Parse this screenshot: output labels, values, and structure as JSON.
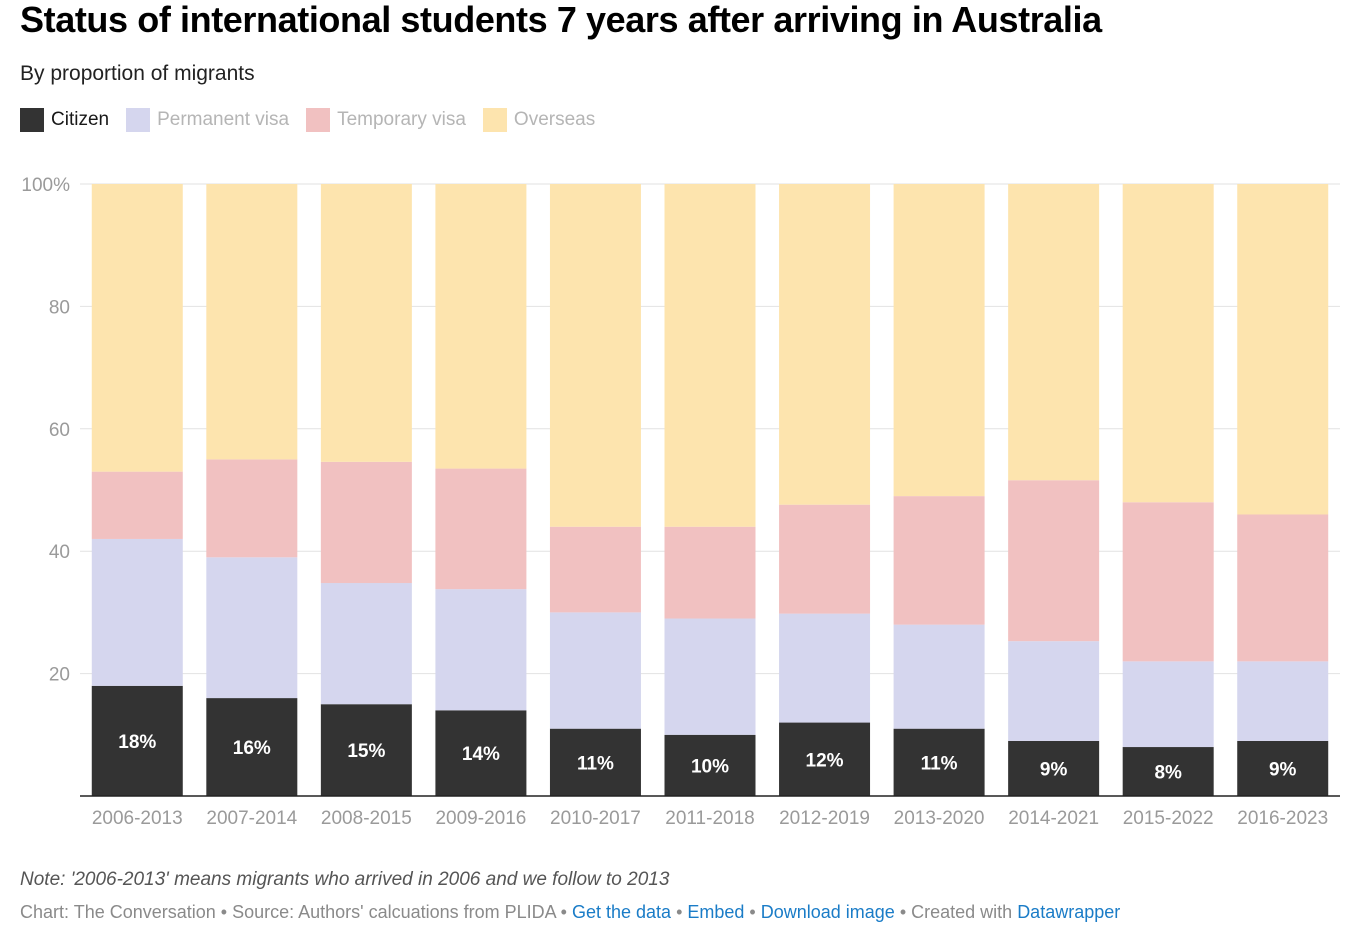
{
  "header": {
    "title": "Status of international students 7 years after arriving in Australia",
    "subtitle": "By proportion of migrants"
  },
  "legend": [
    {
      "label": "Citizen",
      "color": "#333333",
      "active": true
    },
    {
      "label": "Permanent visa",
      "color": "#d5d6ee",
      "active": false
    },
    {
      "label": "Temporary visa",
      "color": "#f1c1c1",
      "active": false
    },
    {
      "label": "Overseas",
      "color": "#fde4ae",
      "active": false
    }
  ],
  "chart_data": {
    "type": "bar",
    "stacked": true,
    "title": "Status of international students 7 years after arriving in Australia",
    "ylabel": "",
    "xlabel": "",
    "ylim": [
      0,
      100
    ],
    "yticks": [
      20,
      40,
      60,
      80,
      100
    ],
    "ytick_labels": [
      "20",
      "40",
      "60",
      "80",
      "100%"
    ],
    "gridlines": true,
    "categories": [
      "2006-2013",
      "2007-2014",
      "2008-2015",
      "2009-2016",
      "2010-2017",
      "2011-2018",
      "2012-2019",
      "2013-2020",
      "2014-2021",
      "2015-2022",
      "2016-2023"
    ],
    "series": [
      {
        "name": "Citizen",
        "color": "#333333",
        "values": [
          18,
          16,
          15,
          14,
          11,
          10,
          12,
          11,
          9,
          8,
          9
        ],
        "labels": [
          "18%",
          "16%",
          "15%",
          "14%",
          "11%",
          "10%",
          "12%",
          "11%",
          "9%",
          "8%",
          "9%"
        ]
      },
      {
        "name": "Permanent visa",
        "color": "#d5d6ee",
        "values": [
          24,
          23,
          19.8,
          19.8,
          19,
          19,
          17.8,
          17,
          16.3,
          14,
          13
        ]
      },
      {
        "name": "Temporary visa",
        "color": "#f1c1c1",
        "values": [
          11,
          16,
          19.8,
          19.7,
          14,
          15,
          17.8,
          21,
          26.3,
          26,
          24
        ]
      },
      {
        "name": "Overseas",
        "color": "#fde4ae",
        "values": [
          47,
          45,
          45.4,
          46.5,
          56,
          56,
          52.4,
          51,
          48.4,
          52,
          54
        ]
      }
    ]
  },
  "footer": {
    "note": "Note: '2006-2013' means migrants who arrived in 2006 and we follow to 2013",
    "source": "Chart: The Conversation • Source: Authors' calcuations from PLIDA",
    "sep": " • ",
    "get_data": "Get the data",
    "embed": "Embed",
    "download": "Download image",
    "created_with": "Created with ",
    "datawrapper": "Datawrapper"
  }
}
